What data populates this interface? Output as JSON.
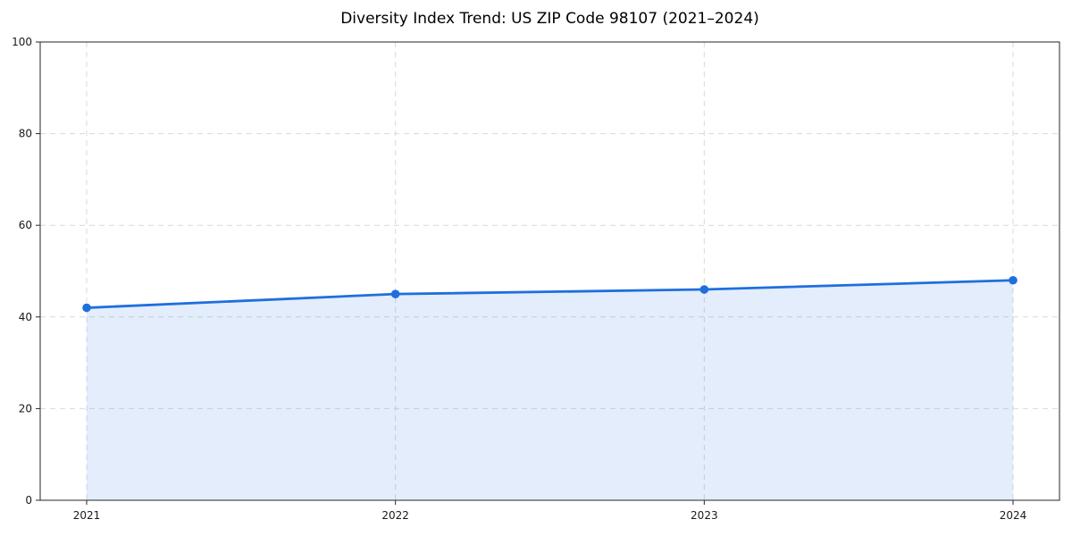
{
  "page": {
    "background_color": "#ffffff"
  },
  "chart_data": {
    "type": "area",
    "title": "Diversity Index Trend: US ZIP Code 98107 (2021–2024)",
    "xlabel": "",
    "ylabel": "",
    "x_tick_labels": [
      "2021",
      "2022",
      "2023",
      "2024"
    ],
    "categories": [
      2021,
      2022,
      2023,
      2024
    ],
    "series": [
      {
        "name": "Diversity Index",
        "values": [
          42,
          45,
          46,
          48
        ]
      }
    ],
    "ylim": [
      0,
      100
    ],
    "yticks": [
      0,
      20,
      40,
      60,
      80,
      100
    ],
    "grid": "dashed-both-axes",
    "legend": "none",
    "line_color": "#1f6fdd",
    "marker": "circle",
    "marker_color": "#1f6fdd",
    "fill_color": "rgba(31,111,221,0.12)",
    "grid_color": "#d9d9d9",
    "axis_color": "#262626",
    "text_color": "#1a1a1a"
  }
}
